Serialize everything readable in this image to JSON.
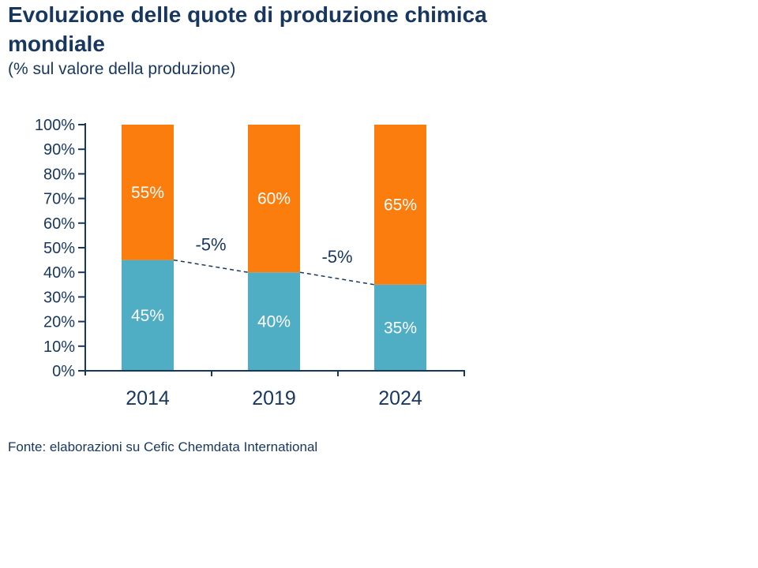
{
  "title_lines": [
    "Evoluzione delle quote di produzione chimica",
    "mondiale"
  ],
  "subtitle": "(% sul valore della produzione)",
  "footer": "Fonte: elaborazioni su Cefic Chemdata International",
  "colors": {
    "navy": "#17375E",
    "orange": "#FA7D0E",
    "teal": "#4FADC4",
    "bar_label_white": "#FFFFFF"
  },
  "chart_data": {
    "type": "bar",
    "stacked": true,
    "title": "Evoluzione delle quote di produzione chimica mondiale",
    "subtitle": "(% sul valore della produzione)",
    "categories": [
      "2014",
      "2019",
      "2024"
    ],
    "series": [
      {
        "name": "quota-inferiore",
        "values": [
          45,
          40,
          35
        ],
        "color": "#4FADC4",
        "labels": [
          "45%",
          "40%",
          "35%"
        ]
      },
      {
        "name": "quota-superiore",
        "values": [
          55,
          60,
          65
        ],
        "color": "#FA7D0E",
        "labels": [
          "55%",
          "60%",
          "65%"
        ]
      }
    ],
    "y_axis": {
      "min": 0,
      "max": 100,
      "step": 10,
      "tick_suffix": "%"
    },
    "ylim": [
      0,
      100
    ],
    "grid": false,
    "legend": "none",
    "connector": {
      "style": "dashed",
      "values": [
        45,
        40,
        35
      ]
    },
    "annotations": [
      {
        "text": "-5%",
        "between": [
          0,
          1
        ]
      },
      {
        "text": "-5%",
        "between": [
          1,
          2
        ]
      }
    ]
  }
}
